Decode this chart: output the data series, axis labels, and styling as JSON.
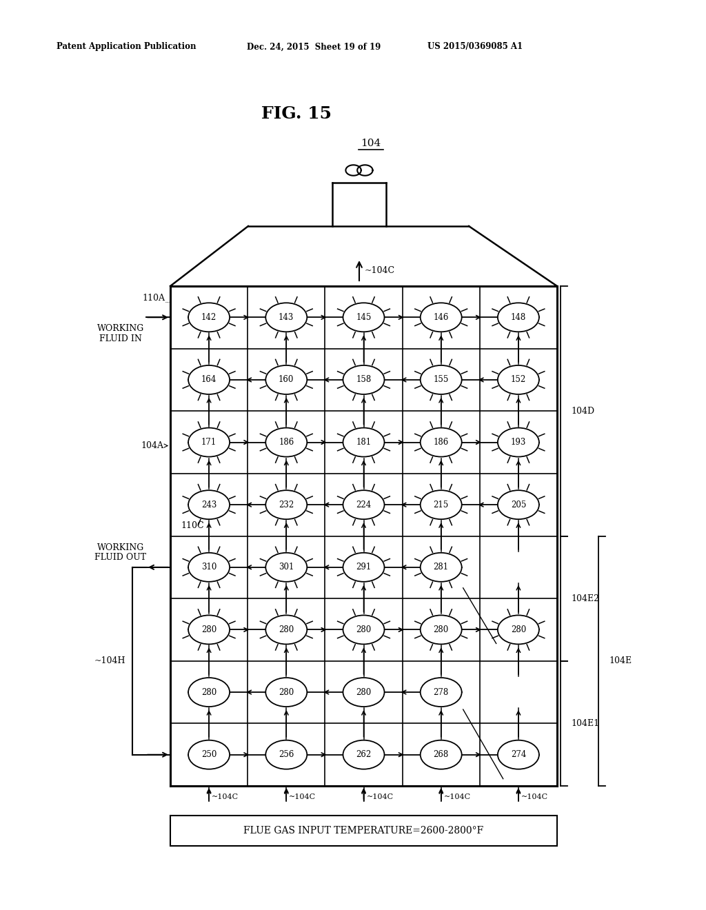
{
  "patent_line1": "Patent Application Publication",
  "patent_line2": "Dec. 24, 2015  Sheet 19 of 19",
  "patent_line3": "US 2015/0369085 A1",
  "fig_title": "FIG. 15",
  "component_label": "104",
  "flow_label": "104C",
  "grid_values": [
    [
      142,
      143,
      145,
      146,
      148
    ],
    [
      164,
      160,
      158,
      155,
      152
    ],
    [
      171,
      186,
      181,
      186,
      193
    ],
    [
      243,
      232,
      224,
      215,
      205
    ],
    [
      310,
      301,
      291,
      281,
      null
    ],
    [
      280,
      280,
      280,
      280,
      280
    ],
    [
      280,
      280,
      280,
      278,
      null
    ],
    [
      250,
      256,
      262,
      268,
      274
    ]
  ],
  "row_flow_right": [
    true,
    false,
    true,
    false,
    false,
    true,
    false,
    true
  ],
  "row_has_sun": [
    true,
    true,
    true,
    true,
    true,
    true,
    false,
    false
  ],
  "bottom_text": "FLUE GAS INPUT TEMPERATURE=2600-2800°F",
  "bg_color": "#ffffff",
  "lc": "#000000"
}
